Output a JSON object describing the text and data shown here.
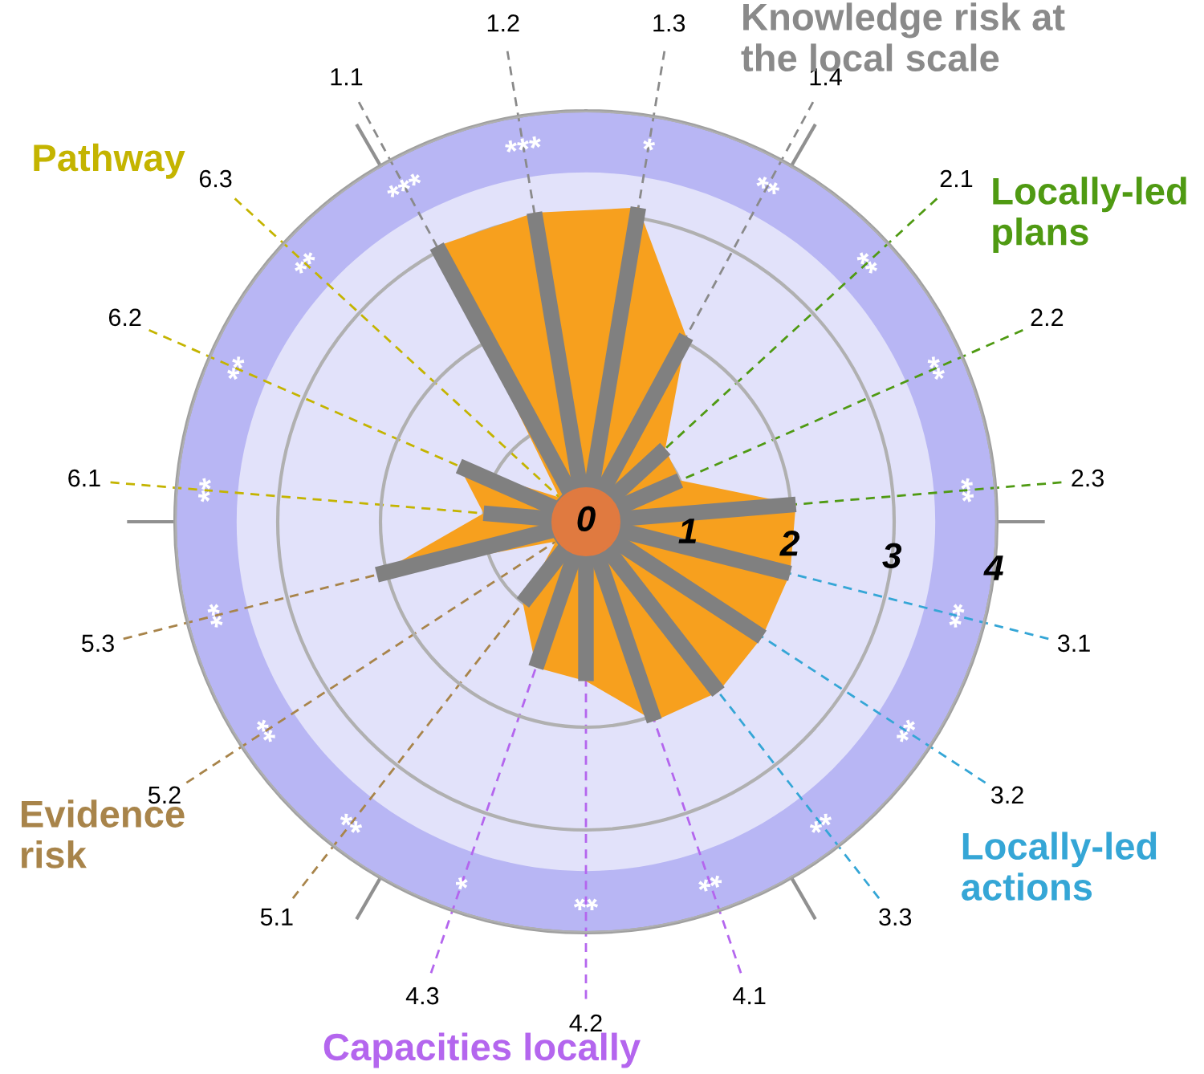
{
  "chart_data": {
    "type": "radar",
    "categories": [
      "1.1",
      "1.2",
      "1.3",
      "1.4",
      "2.1",
      "2.2",
      "2.3",
      "3.1",
      "3.2",
      "3.3",
      "4.1",
      "4.2",
      "4.3",
      "5.1",
      "5.2",
      "5.3",
      "6.1",
      "6.2",
      "6.3"
    ],
    "series": [
      {
        "color": "#f7a01e",
        "values": [
          3.05,
          3.05,
          3.1,
          2.05,
          1.05,
          1.0,
          2.05,
          2.05,
          2.05,
          2.1,
          2.05,
          1.55,
          1.5,
          1.0,
          0.35,
          2.1,
          1.0,
          1.35,
          0.35
        ]
      }
    ],
    "ylim": [
      0,
      4
    ],
    "yticks": [
      0,
      1,
      2,
      3,
      4
    ],
    "grid": true,
    "annotations": [
      "Knowledge risk at the local scale",
      "Locally-led plans",
      "Locally-led actions",
      "Capacities locally",
      "Evidence risk",
      "Pathway",
      "***",
      "***",
      "*",
      "**",
      "**",
      "**",
      "**",
      "**",
      "**",
      "**",
      "**",
      "**",
      "*",
      "**",
      "**",
      "**",
      "**",
      "**",
      "**"
    ]
  }
}
